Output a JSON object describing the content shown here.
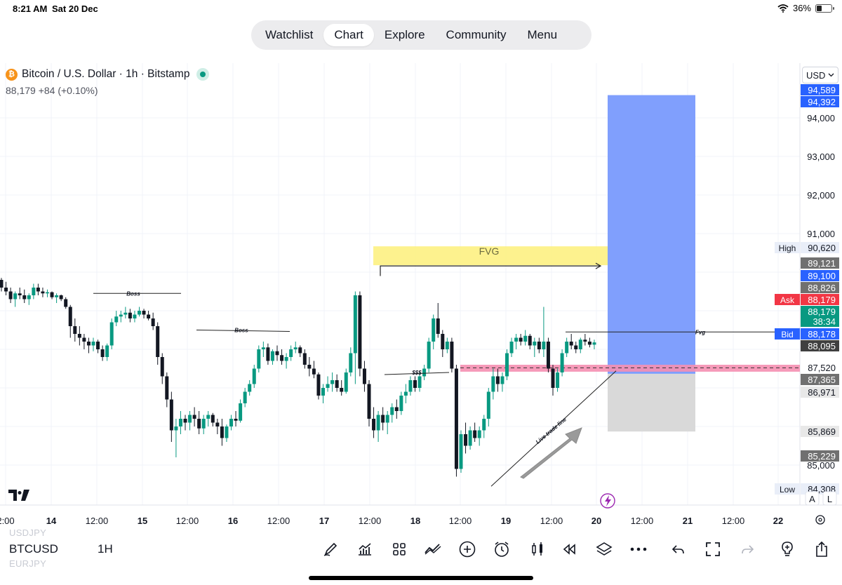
{
  "status": {
    "time": "8:21 AM",
    "date": "Sat 20 Dec",
    "battery": "36%",
    "battery_level": 0.36
  },
  "nav": {
    "tabs": [
      "Watchlist",
      "Chart",
      "Explore",
      "Community",
      "Menu"
    ],
    "active": "Chart"
  },
  "header": {
    "symbol_title": "Bitcoin / U.S. Dollar · 1h · Bitstamp",
    "coin_icon": "₿",
    "price_line": "88,179 +84 (+0.10%)",
    "currency": "USD",
    "currency_icon": "chevron-down-icon"
  },
  "chart_data": {
    "type": "candlestick",
    "symbol": "BTCUSD",
    "interval": "1H",
    "ylim": [
      84150,
      95050
    ],
    "x_tick_labels": [
      "2:00",
      "14",
      "12:00",
      "15",
      "12:00",
      "16",
      "12:00",
      "17",
      "12:00",
      "18",
      "12:00",
      "19",
      "12:00",
      "20",
      "12:00",
      "21",
      "12:00",
      "22"
    ],
    "y_tick_labels": [
      "94,000",
      "93,000",
      "92,000",
      "91,000",
      "85,000"
    ],
    "y_ticks": [
      94000,
      93000,
      92000,
      91000,
      90000,
      89000,
      88000,
      87000,
      86000,
      85000
    ],
    "candles": [
      [
        89800,
        89850,
        89500,
        89600
      ],
      [
        89600,
        89750,
        89400,
        89500
      ],
      [
        89500,
        89600,
        89200,
        89300
      ],
      [
        89300,
        89500,
        89100,
        89450
      ],
      [
        89450,
        89600,
        89300,
        89400
      ],
      [
        89400,
        89550,
        89200,
        89300
      ],
      [
        89300,
        89450,
        89150,
        89400
      ],
      [
        89400,
        89700,
        89300,
        89600
      ],
      [
        89600,
        89700,
        89400,
        89500
      ],
      [
        89500,
        89600,
        89350,
        89450
      ],
      [
        89450,
        89550,
        89350,
        89480
      ],
      [
        89480,
        89500,
        89300,
        89350
      ],
      [
        89350,
        89450,
        89200,
        89400
      ],
      [
        89400,
        89420,
        89250,
        89300
      ],
      [
        89300,
        89350,
        89050,
        89100
      ],
      [
        89100,
        89150,
        88300,
        88600
      ],
      [
        88600,
        88800,
        88200,
        88400
      ],
      [
        88400,
        88600,
        88100,
        88300
      ],
      [
        88300,
        88400,
        88000,
        88200
      ],
      [
        88200,
        88300,
        87900,
        88100
      ],
      [
        88100,
        88300,
        87950,
        88200
      ],
      [
        88200,
        88250,
        87900,
        88000
      ],
      [
        88000,
        88100,
        87700,
        87800
      ],
      [
        87800,
        88150,
        87700,
        88100
      ],
      [
        88100,
        88800,
        88000,
        88700
      ],
      [
        88700,
        89000,
        88600,
        88850
      ],
      [
        88850,
        89000,
        88700,
        88900
      ],
      [
        88900,
        89100,
        88800,
        88950
      ],
      [
        88950,
        89050,
        88700,
        88800
      ],
      [
        88800,
        89000,
        88700,
        88900
      ],
      [
        88900,
        89100,
        88850,
        89000
      ],
      [
        89000,
        89050,
        88800,
        88900
      ],
      [
        88900,
        89000,
        88750,
        88800
      ],
      [
        88800,
        88950,
        88500,
        88600
      ],
      [
        88600,
        88700,
        87600,
        87800
      ],
      [
        87800,
        87900,
        87100,
        87300
      ],
      [
        87300,
        87400,
        86500,
        86700
      ],
      [
        86700,
        86900,
        85600,
        85900
      ],
      [
        85900,
        86200,
        85200,
        86000
      ],
      [
        86000,
        86400,
        85800,
        86200
      ],
      [
        86200,
        86300,
        85900,
        86100
      ],
      [
        86100,
        86400,
        85900,
        86300
      ],
      [
        86300,
        86500,
        86000,
        86200
      ],
      [
        86200,
        86400,
        85800,
        85950
      ],
      [
        85950,
        86300,
        85800,
        86200
      ],
      [
        86200,
        86400,
        86000,
        86300
      ],
      [
        86300,
        86350,
        86000,
        86100
      ],
      [
        86100,
        86200,
        85800,
        86000
      ],
      [
        86000,
        86200,
        85500,
        85700
      ],
      [
        85700,
        86050,
        85600,
        86000
      ],
      [
        86000,
        86300,
        85900,
        86200
      ],
      [
        86200,
        86400,
        86000,
        86150
      ],
      [
        86150,
        86700,
        86100,
        86600
      ],
      [
        86600,
        87000,
        86500,
        86900
      ],
      [
        86900,
        87200,
        86800,
        87100
      ],
      [
        87100,
        87600,
        87000,
        87500
      ],
      [
        87500,
        88100,
        87400,
        88000
      ],
      [
        88000,
        88200,
        87800,
        88050
      ],
      [
        88050,
        88150,
        87600,
        87700
      ],
      [
        87700,
        88000,
        87600,
        87950
      ],
      [
        87950,
        88100,
        87700,
        87850
      ],
      [
        87850,
        88000,
        87600,
        87700
      ],
      [
        87700,
        87900,
        87500,
        87800
      ],
      [
        87800,
        88100,
        87700,
        88000
      ],
      [
        88000,
        88200,
        87900,
        88050
      ],
      [
        88050,
        88100,
        87800,
        87900
      ],
      [
        87900,
        88000,
        87500,
        87600
      ],
      [
        87600,
        87800,
        87300,
        87500
      ],
      [
        87500,
        87700,
        87250,
        87350
      ],
      [
        87350,
        87400,
        86700,
        86800
      ],
      [
        86800,
        87100,
        86600,
        87000
      ],
      [
        87000,
        87300,
        86900,
        87100
      ],
      [
        87100,
        87400,
        86900,
        87200
      ],
      [
        87200,
        87350,
        86900,
        87000
      ],
      [
        87000,
        87200,
        86800,
        86900
      ],
      [
        86900,
        87500,
        86850,
        87400
      ],
      [
        87400,
        88050,
        87300,
        87900
      ],
      [
        87900,
        89500,
        87100,
        89400
      ],
      [
        89400,
        89500,
        87300,
        87500
      ],
      [
        87500,
        87700,
        86900,
        87100
      ],
      [
        87100,
        87200,
        86000,
        86200
      ],
      [
        86200,
        86500,
        85700,
        85900
      ],
      [
        85900,
        86400,
        85600,
        86300
      ],
      [
        86300,
        86500,
        85900,
        86100
      ],
      [
        86100,
        86400,
        85800,
        86300
      ],
      [
        86300,
        86600,
        86100,
        86500
      ],
      [
        86500,
        86700,
        86200,
        86400
      ],
      [
        86400,
        86900,
        86300,
        86800
      ],
      [
        86800,
        87100,
        86600,
        86900
      ],
      [
        86900,
        87300,
        86800,
        87200
      ],
      [
        87200,
        87300,
        86900,
        87000
      ],
      [
        87000,
        87400,
        86900,
        87300
      ],
      [
        87300,
        87600,
        87200,
        87500
      ],
      [
        87500,
        88300,
        87400,
        88200
      ],
      [
        88200,
        88900,
        88000,
        88800
      ],
      [
        88800,
        89200,
        88300,
        88400
      ],
      [
        88400,
        88500,
        87800,
        88000
      ],
      [
        88000,
        88300,
        87900,
        88200
      ],
      [
        88200,
        88300,
        87400,
        87500
      ],
      [
        87500,
        87600,
        84700,
        84900
      ],
      [
        84900,
        85900,
        84800,
        85800
      ],
      [
        85800,
        86100,
        85300,
        85500
      ],
      [
        85500,
        86000,
        85400,
        85900
      ],
      [
        85900,
        86100,
        85600,
        85700
      ],
      [
        85700,
        86000,
        85500,
        85900
      ],
      [
        85900,
        86300,
        85700,
        86200
      ],
      [
        86200,
        87000,
        86000,
        86900
      ],
      [
        86900,
        87500,
        86700,
        87300
      ],
      [
        87300,
        87500,
        86900,
        87100
      ],
      [
        87100,
        87400,
        86900,
        87300
      ],
      [
        87300,
        88000,
        87200,
        87900
      ],
      [
        87900,
        88300,
        87800,
        88200
      ],
      [
        88200,
        88400,
        88000,
        88300
      ],
      [
        88300,
        88400,
        88100,
        88200
      ],
      [
        88200,
        88500,
        88100,
        88350
      ],
      [
        88350,
        88400,
        88000,
        88100
      ],
      [
        88100,
        88300,
        87800,
        88200
      ],
      [
        88200,
        88300,
        87900,
        88000
      ],
      [
        88000,
        89100,
        87800,
        88200
      ],
      [
        88200,
        88300,
        87400,
        87500
      ],
      [
        87500,
        87600,
        86800,
        87000
      ],
      [
        87000,
        87500,
        86900,
        87400
      ],
      [
        87400,
        88000,
        87300,
        87900
      ],
      [
        87900,
        88300,
        87800,
        88200
      ],
      [
        88200,
        88400,
        88000,
        88100
      ],
      [
        88100,
        88200,
        87900,
        88000
      ],
      [
        88000,
        88300,
        87900,
        88250
      ],
      [
        88250,
        88400,
        88100,
        88200
      ],
      [
        88200,
        88300,
        88050,
        88120
      ],
      [
        88120,
        88250,
        88000,
        88179
      ]
    ],
    "price_labels": [
      {
        "text": "94,589",
        "value": 94589,
        "bg": "#2962ff"
      },
      {
        "text": "94,392",
        "value": 94392,
        "bg": "#2962ff"
      },
      {
        "text": "90,620",
        "value": 90620,
        "bg": "#e9eef8",
        "tag": "High"
      },
      {
        "text": "89,121",
        "value": 89121,
        "bg": "#707070"
      },
      {
        "text": "89,100",
        "value": 89100,
        "bg": "#2962ff"
      },
      {
        "text": "88,826",
        "value": 88826,
        "bg": "#707070"
      },
      {
        "text": "88,179",
        "value": 88179,
        "bg": "#f23645",
        "tag": "Ask"
      },
      {
        "text": "88,179",
        "value": 88179,
        "bg": "#089981",
        "timer": "38:34"
      },
      {
        "text": "88,178",
        "value": 88178,
        "bg": "#2962ff",
        "tag": "Bid"
      },
      {
        "text": "88,095",
        "value": 88095,
        "bg": "#404040"
      },
      {
        "text": "87,520",
        "value": 87520,
        "bg": "#ffffff"
      },
      {
        "text": "87,365",
        "value": 87365,
        "bg": "#707070"
      },
      {
        "text": "86,971",
        "value": 86971,
        "bg": "#e8e8e8"
      },
      {
        "text": "85,869",
        "value": 85869,
        "bg": "#e8e8e8"
      },
      {
        "text": "85,229",
        "value": 85229,
        "bg": "#707070"
      },
      {
        "text": "84,308",
        "value": 84308,
        "bg": "#e9eef8",
        "tag": "Low"
      }
    ],
    "annotations": {
      "fvg_zone": {
        "label": "FVG",
        "color": "#fdf07a",
        "from": 90670,
        "to": 90180
      },
      "boss_1": {
        "label": "Boss",
        "price": 89450
      },
      "boss_2": {
        "label": "Boss",
        "price": 88500
      },
      "dollars": {
        "label": "$$$",
        "price": 87400
      },
      "fvg_small": {
        "label": "Fvg",
        "price": 88450
      },
      "trend_label": "Live trade line",
      "support_band": {
        "from": 87600,
        "to": 87420,
        "color": "#f58fb1"
      },
      "long_position": {
        "entry": 87365,
        "target": 94589,
        "stop": 85869,
        "profit_color": "#809ffd",
        "loss_color": "#d9d9d9"
      }
    },
    "scale_buttons": [
      "A",
      "L"
    ],
    "settings_icon": "gear-icon",
    "tradingview_logo": "tradingview-logo-icon",
    "flash_icon": "lightning-icon"
  },
  "bottom": {
    "ghost_top": "USDJPY",
    "ghost_bottom": "EURJPY",
    "symbol": "BTCUSD",
    "interval": "1H",
    "tools": [
      "drawing-pen-icon",
      "indicators-icon",
      "grid-layout-icon",
      "compare-icon",
      "add-icon",
      "alert-clock-icon",
      "candle-type-icon",
      "replay-icon",
      "layers-icon",
      "more-icon",
      "undo-icon",
      "fullscreen-icon",
      "redo-icon",
      "ideas-bulb-icon",
      "share-icon"
    ]
  }
}
